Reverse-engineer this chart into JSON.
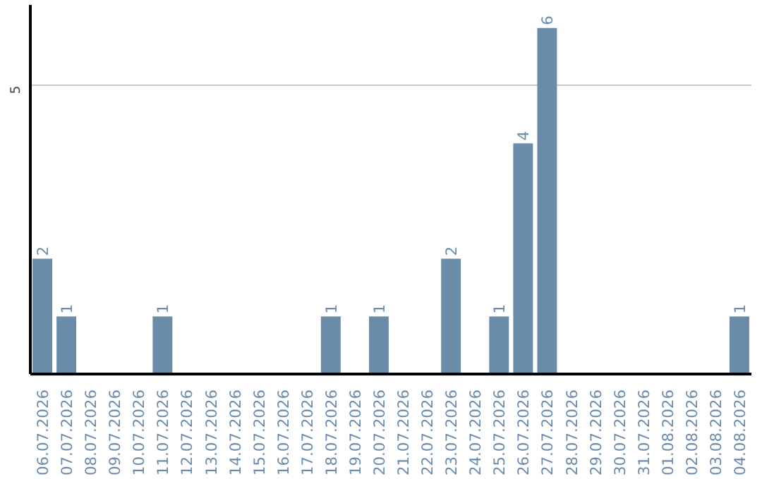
{
  "chart_data": {
    "type": "bar",
    "categories": [
      "06.07.2026",
      "07.07.2026",
      "08.07.2026",
      "09.07.2026",
      "10.07.2026",
      "11.07.2026",
      "12.07.2026",
      "13.07.2026",
      "14.07.2026",
      "15.07.2026",
      "16.07.2026",
      "17.07.2026",
      "18.07.2026",
      "19.07.2026",
      "20.07.2026",
      "21.07.2026",
      "22.07.2026",
      "23.07.2026",
      "24.07.2026",
      "25.07.2026",
      "26.07.2026",
      "27.07.2026",
      "28.07.2026",
      "29.07.2026",
      "30.07.2026",
      "31.07.2026",
      "01.08.2026",
      "02.08.2026",
      "03.08.2026",
      "04.08.2026"
    ],
    "values": [
      2,
      1,
      0,
      0,
      0,
      1,
      0,
      0,
      0,
      0,
      0,
      0,
      1,
      0,
      1,
      0,
      0,
      2,
      0,
      1,
      4,
      6,
      0,
      0,
      0,
      0,
      0,
      0,
      0,
      1
    ],
    "value_labels": [
      "2",
      "1",
      null,
      null,
      null,
      "1",
      null,
      null,
      null,
      null,
      null,
      null,
      "1",
      null,
      "1",
      null,
      null,
      "2",
      null,
      "1",
      "4",
      "6",
      null,
      null,
      null,
      null,
      null,
      null,
      null,
      "1"
    ],
    "color": "#6a8caa",
    "ylim": [
      0,
      6.4
    ],
    "yticks": [
      5
    ],
    "grid": "y"
  }
}
